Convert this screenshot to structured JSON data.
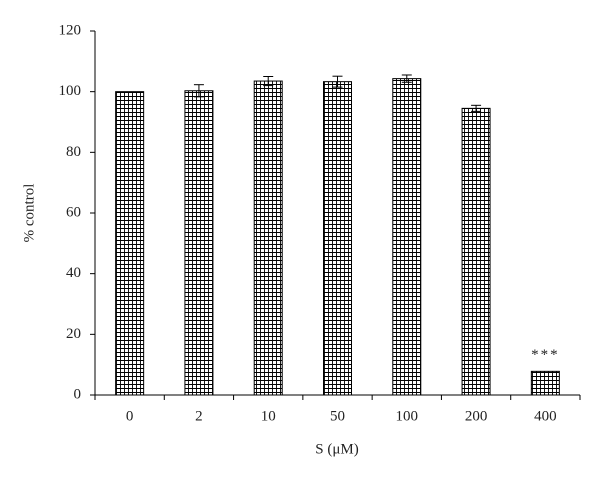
{
  "chart_data": {
    "type": "bar",
    "x_label": "S (μM)",
    "y_label": "% control",
    "categories": [
      "0",
      "2",
      "10",
      "50",
      "100",
      "200",
      "400"
    ],
    "values": [
      100,
      100.3,
      103.5,
      103.3,
      104.3,
      94.5,
      7.8
    ],
    "errors": [
      null,
      2,
      1.5,
      1.8,
      1.2,
      1,
      null
    ],
    "annotation": "***",
    "color": "#000000",
    "ylim": [
      0,
      120
    ],
    "yticks": [
      0,
      20,
      40,
      60,
      80,
      100,
      120
    ]
  }
}
